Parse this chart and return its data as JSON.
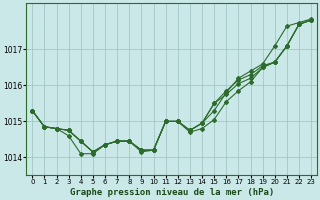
{
  "xlabel": "Graphe pression niveau de la mer (hPa)",
  "background_color": "#cbe8e8",
  "grid_color": "#9bbfbf",
  "line_color": "#2d6b2d",
  "ylim": [
    1013.5,
    1018.3
  ],
  "xlim": [
    -0.5,
    23.5
  ],
  "yticks": [
    1014,
    1015,
    1016,
    1017
  ],
  "xticks": [
    0,
    1,
    2,
    3,
    4,
    5,
    6,
    7,
    8,
    9,
    10,
    11,
    12,
    13,
    14,
    15,
    16,
    17,
    18,
    19,
    20,
    21,
    22,
    23
  ],
  "series": [
    [
      1015.3,
      1014.85,
      1014.8,
      1014.75,
      1014.45,
      1014.15,
      1014.35,
      1014.45,
      1014.45,
      1014.2,
      1014.2,
      1015.0,
      1015.0,
      1014.75,
      1014.95,
      1015.3,
      1015.8,
      1016.2,
      1016.4,
      1016.6,
      1017.1,
      1017.65,
      1017.75,
      1017.85
    ],
    [
      1015.3,
      1014.85,
      1014.8,
      1014.75,
      1014.45,
      1014.15,
      1014.35,
      1014.45,
      1014.45,
      1014.2,
      1014.2,
      1015.0,
      1015.0,
      1014.75,
      1014.95,
      1015.5,
      1015.85,
      1016.15,
      1016.3,
      1016.55,
      1016.65,
      1017.1,
      1017.7,
      1017.82
    ],
    [
      1015.3,
      1014.85,
      1014.8,
      1014.75,
      1014.45,
      1014.15,
      1014.35,
      1014.45,
      1014.45,
      1014.2,
      1014.2,
      1015.0,
      1015.0,
      1014.75,
      1014.95,
      1015.5,
      1015.75,
      1016.05,
      1016.2,
      1016.5,
      1016.65,
      1017.1,
      1017.7,
      1017.82
    ],
    [
      1015.3,
      1014.85,
      1014.8,
      1014.6,
      1014.1,
      1014.1,
      1014.35,
      1014.45,
      1014.45,
      1014.15,
      1014.2,
      1015.0,
      1015.0,
      1014.7,
      1014.8,
      1015.05,
      1015.55,
      1015.85,
      1016.1,
      1016.5,
      1016.65,
      1017.1,
      1017.7,
      1017.82
    ]
  ]
}
